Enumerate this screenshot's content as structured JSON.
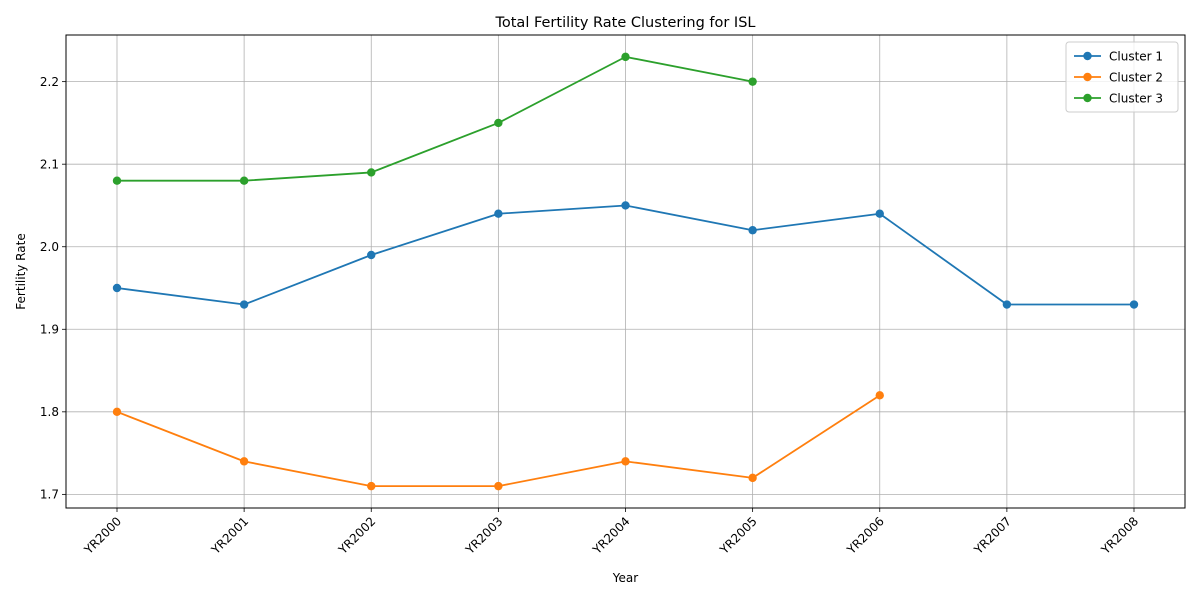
{
  "chart_data": {
    "type": "line",
    "title": "Total Fertility Rate Clustering for ISL",
    "xlabel": "Year",
    "ylabel": "Fertility Rate",
    "categories": [
      "YR2000",
      "YR2001",
      "YR2002",
      "YR2003",
      "YR2004",
      "YR2005",
      "YR2006",
      "YR2007",
      "YR2008"
    ],
    "yticks": [
      "1.7",
      "1.8",
      "1.9",
      "2.0",
      "2.1",
      "2.2"
    ],
    "ylim": [
      1.6835,
      2.2565
    ],
    "grid": true,
    "legend_position": "upper-right",
    "series": [
      {
        "name": "Cluster 1",
        "color": "#1f77b4",
        "values": [
          1.95,
          1.93,
          1.99,
          2.04,
          2.05,
          2.02,
          2.04,
          1.93,
          1.93
        ]
      },
      {
        "name": "Cluster 2",
        "color": "#ff7f0e",
        "values": [
          1.8,
          1.74,
          1.71,
          1.71,
          1.74,
          1.72,
          1.82,
          null,
          null
        ]
      },
      {
        "name": "Cluster 3",
        "color": "#2ca02c",
        "values": [
          2.08,
          2.08,
          2.09,
          2.15,
          2.23,
          2.2,
          null,
          null,
          null
        ]
      }
    ]
  }
}
